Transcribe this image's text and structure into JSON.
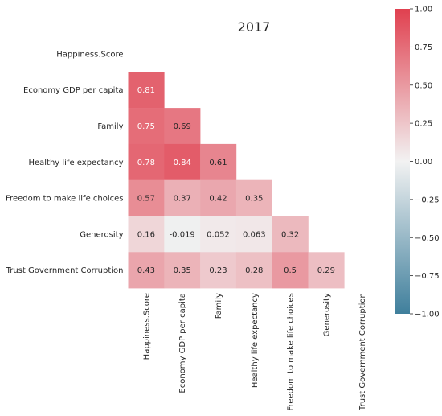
{
  "chart_data": {
    "type": "heatmap",
    "title": "2017",
    "labels": [
      "Happiness.Score",
      "Economy GDP per capita",
      "Family",
      "Healthy life expectancy",
      "Freedom to make life choices",
      "Generosity",
      "Trust Government Corruption"
    ],
    "values": [
      [
        null,
        null,
        null,
        null,
        null,
        null,
        null
      ],
      [
        0.81,
        null,
        null,
        null,
        null,
        null,
        null
      ],
      [
        0.75,
        0.69,
        null,
        null,
        null,
        null,
        null
      ],
      [
        0.78,
        0.84,
        0.61,
        null,
        null,
        null,
        null
      ],
      [
        0.57,
        0.37,
        0.42,
        0.35,
        null,
        null,
        null
      ],
      [
        0.16,
        -0.019,
        0.052,
        0.063,
        0.32,
        null,
        null
      ],
      [
        0.43,
        0.35,
        0.23,
        0.28,
        0.5,
        0.29,
        null
      ]
    ],
    "value_labels": [
      [
        null,
        null,
        null,
        null,
        null,
        null,
        null
      ],
      [
        "0.81",
        null,
        null,
        null,
        null,
        null,
        null
      ],
      [
        "0.75",
        "0.69",
        null,
        null,
        null,
        null,
        null
      ],
      [
        "0.78",
        "0.84",
        "0.61",
        null,
        null,
        null,
        null
      ],
      [
        "0.57",
        "0.37",
        "0.42",
        "0.35",
        null,
        null,
        null
      ],
      [
        "0.16",
        "-0.019",
        "0.052",
        "0.063",
        "0.32",
        null,
        null
      ],
      [
        "0.43",
        "0.35",
        "0.23",
        "0.28",
        "0.5",
        "0.29",
        null
      ]
    ],
    "mask": "upper-triangle-and-diagonal",
    "colorbar": {
      "range": [
        -1.0,
        1.0
      ],
      "ticks": [
        -1.0,
        -0.75,
        -0.5,
        -0.25,
        0.0,
        0.25,
        0.5,
        0.75,
        1.0
      ],
      "tick_labels": [
        "−1.00",
        "−0.75",
        "−0.50",
        "−0.25",
        "0.00",
        "0.25",
        "0.50",
        "0.75",
        "1.00"
      ],
      "low_color": "#3f7f9c",
      "mid_color": "#f2f2f2",
      "high_color": "#e0404f",
      "placement": "right"
    },
    "grid": false
  }
}
